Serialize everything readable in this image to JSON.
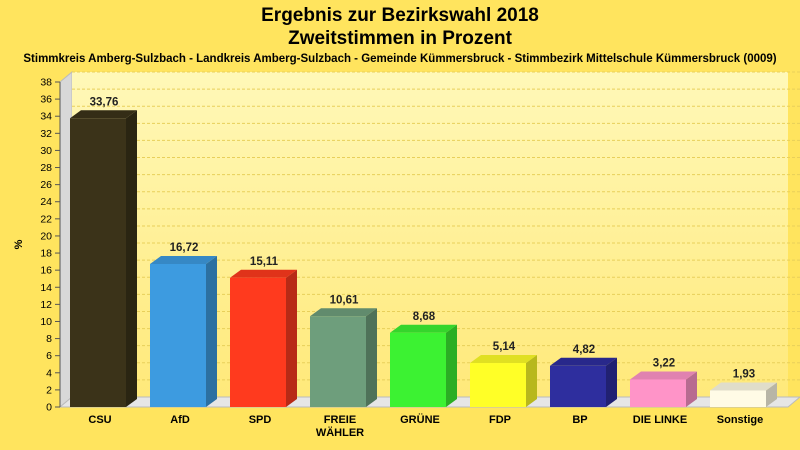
{
  "header": {
    "title_line1": "Ergebnis zur Bezirkswahl 2018",
    "title_line2": "Zweitstimmen in Prozent",
    "subtitle": "Stimmkreis Amberg-Sulzbach - Landkreis Amberg-Sulzbach - Gemeinde Kümmersbruck - Stimmbezirk Mittelschule Kümmersbruck (0009)"
  },
  "colors": {
    "background": "#ffe45e",
    "plot_top": "#fff8b8",
    "plot_bottom": "#ffe97a"
  },
  "chart_data": {
    "type": "bar",
    "title": "Ergebnis zur Bezirkswahl 2018",
    "subtitle": "Zweitstimmen in Prozent",
    "ylabel": "%",
    "ylim": [
      0,
      38
    ],
    "ytick_step": 2,
    "grid": true,
    "categories": [
      "CSU",
      "AfD",
      "SPD",
      "FREIE WÄHLER",
      "GRÜNE",
      "FDP",
      "BP",
      "DIE LINKE",
      "Sonstige"
    ],
    "category_lines": [
      [
        "CSU"
      ],
      [
        "AfD"
      ],
      [
        "SPD"
      ],
      [
        "FREIE",
        "WÄHLER"
      ],
      [
        "GRÜNE"
      ],
      [
        "FDP"
      ],
      [
        "BP"
      ],
      [
        "DIE LINKE"
      ],
      [
        "Sonstige"
      ]
    ],
    "values": [
      33.76,
      16.72,
      15.11,
      10.61,
      8.68,
      5.14,
      4.82,
      3.22,
      1.93
    ],
    "value_labels": [
      "33,76",
      "16,72",
      "15,11",
      "10,61",
      "8,68",
      "5,14",
      "4,82",
      "3,22",
      "1,93"
    ],
    "colors": [
      "#3b3319",
      "#3d9be0",
      "#ff3a1e",
      "#6e9e7c",
      "#3cf232",
      "#ffff27",
      "#2e2e9e",
      "#ff94c8",
      "#fffbe6"
    ]
  }
}
